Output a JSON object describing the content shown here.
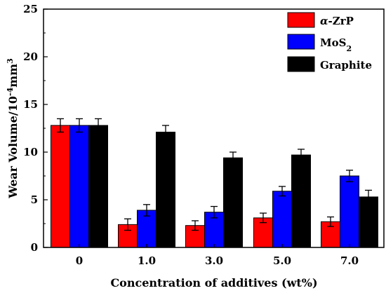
{
  "chart_data": {
    "type": "bar",
    "xlabel": "Concentration of additives (wt%)",
    "ylabel": "Wear Volume/10",
    "ylabel_sup1": "-4",
    "ylabel_mid": "mm",
    "ylabel_sup2": "3",
    "categories": [
      "0",
      "1.0",
      "3.0",
      "5.0",
      "7.0"
    ],
    "ylim": [
      0,
      25
    ],
    "yticks": [
      "0",
      "5",
      "10",
      "15",
      "20",
      "25"
    ],
    "grid": false,
    "legend_position": "top-right",
    "series": [
      {
        "name_prefix": "α",
        "name_suffix": "-ZrP",
        "color": "#ff0000",
        "values": [
          12.8,
          2.4,
          2.3,
          3.1,
          2.7
        ],
        "errors": [
          0.7,
          0.6,
          0.5,
          0.5,
          0.5
        ]
      },
      {
        "name_prefix": "MoS",
        "name_sub": "2",
        "color": "#0000ff",
        "values": [
          12.8,
          3.9,
          3.7,
          5.9,
          7.5
        ],
        "errors": [
          0.7,
          0.6,
          0.6,
          0.5,
          0.6
        ]
      },
      {
        "name_prefix": "Graphite",
        "color": "#000000",
        "values": [
          12.8,
          12.1,
          9.4,
          9.7,
          5.3
        ],
        "errors": [
          0.7,
          0.7,
          0.6,
          0.6,
          0.7
        ]
      }
    ]
  }
}
